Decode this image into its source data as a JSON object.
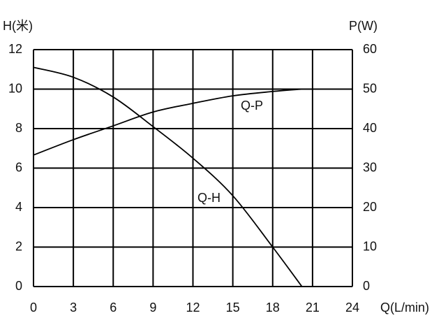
{
  "chart_data": {
    "type": "line",
    "y_label": "H(米)",
    "y2_label": "P(W)",
    "x_label": "Q(L/min)",
    "x": [
      0,
      3,
      6,
      9,
      12,
      15,
      18,
      20.2
    ],
    "series": [
      {
        "name": "Q-H",
        "color": "#000000",
        "values": [
          11.1,
          10.6,
          9.6,
          8.1,
          6.5,
          4.6,
          2.0,
          0
        ]
      },
      {
        "name": "Q-P",
        "color": "#000000",
        "axis": "y2",
        "values": [
          33.3,
          37.2,
          40.7,
          44.2,
          46.4,
          48.3,
          49.4,
          50
        ]
      }
    ],
    "xlim": [
      0,
      24
    ],
    "xticks": [
      0,
      3,
      6,
      9,
      12,
      15,
      18,
      21,
      24
    ],
    "ylim": [
      0,
      12
    ],
    "yticks": [
      0,
      2,
      4,
      6,
      8,
      10,
      12
    ],
    "y2lim": [
      0,
      60
    ],
    "y2ticks": [
      0,
      10,
      20,
      30,
      40,
      50,
      60
    ],
    "grid": true
  }
}
